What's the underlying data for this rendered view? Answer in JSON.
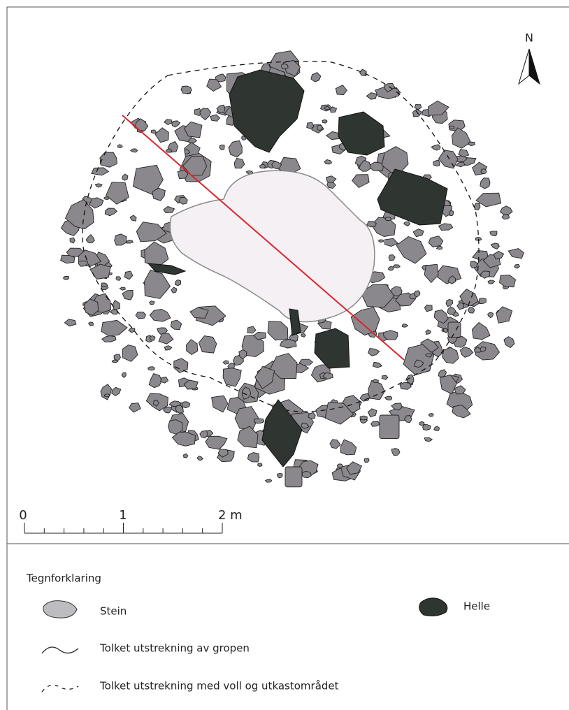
{
  "north": "N",
  "scale_bar": {
    "labels": [
      "0",
      "1",
      "2 m"
    ]
  },
  "legend": {
    "title": "Tegnforklaring",
    "items": [
      "Stein",
      "Helle",
      "Tolket utstrekning av gropen",
      "Tolket utstrekning med voll og utkastområdet"
    ]
  }
}
